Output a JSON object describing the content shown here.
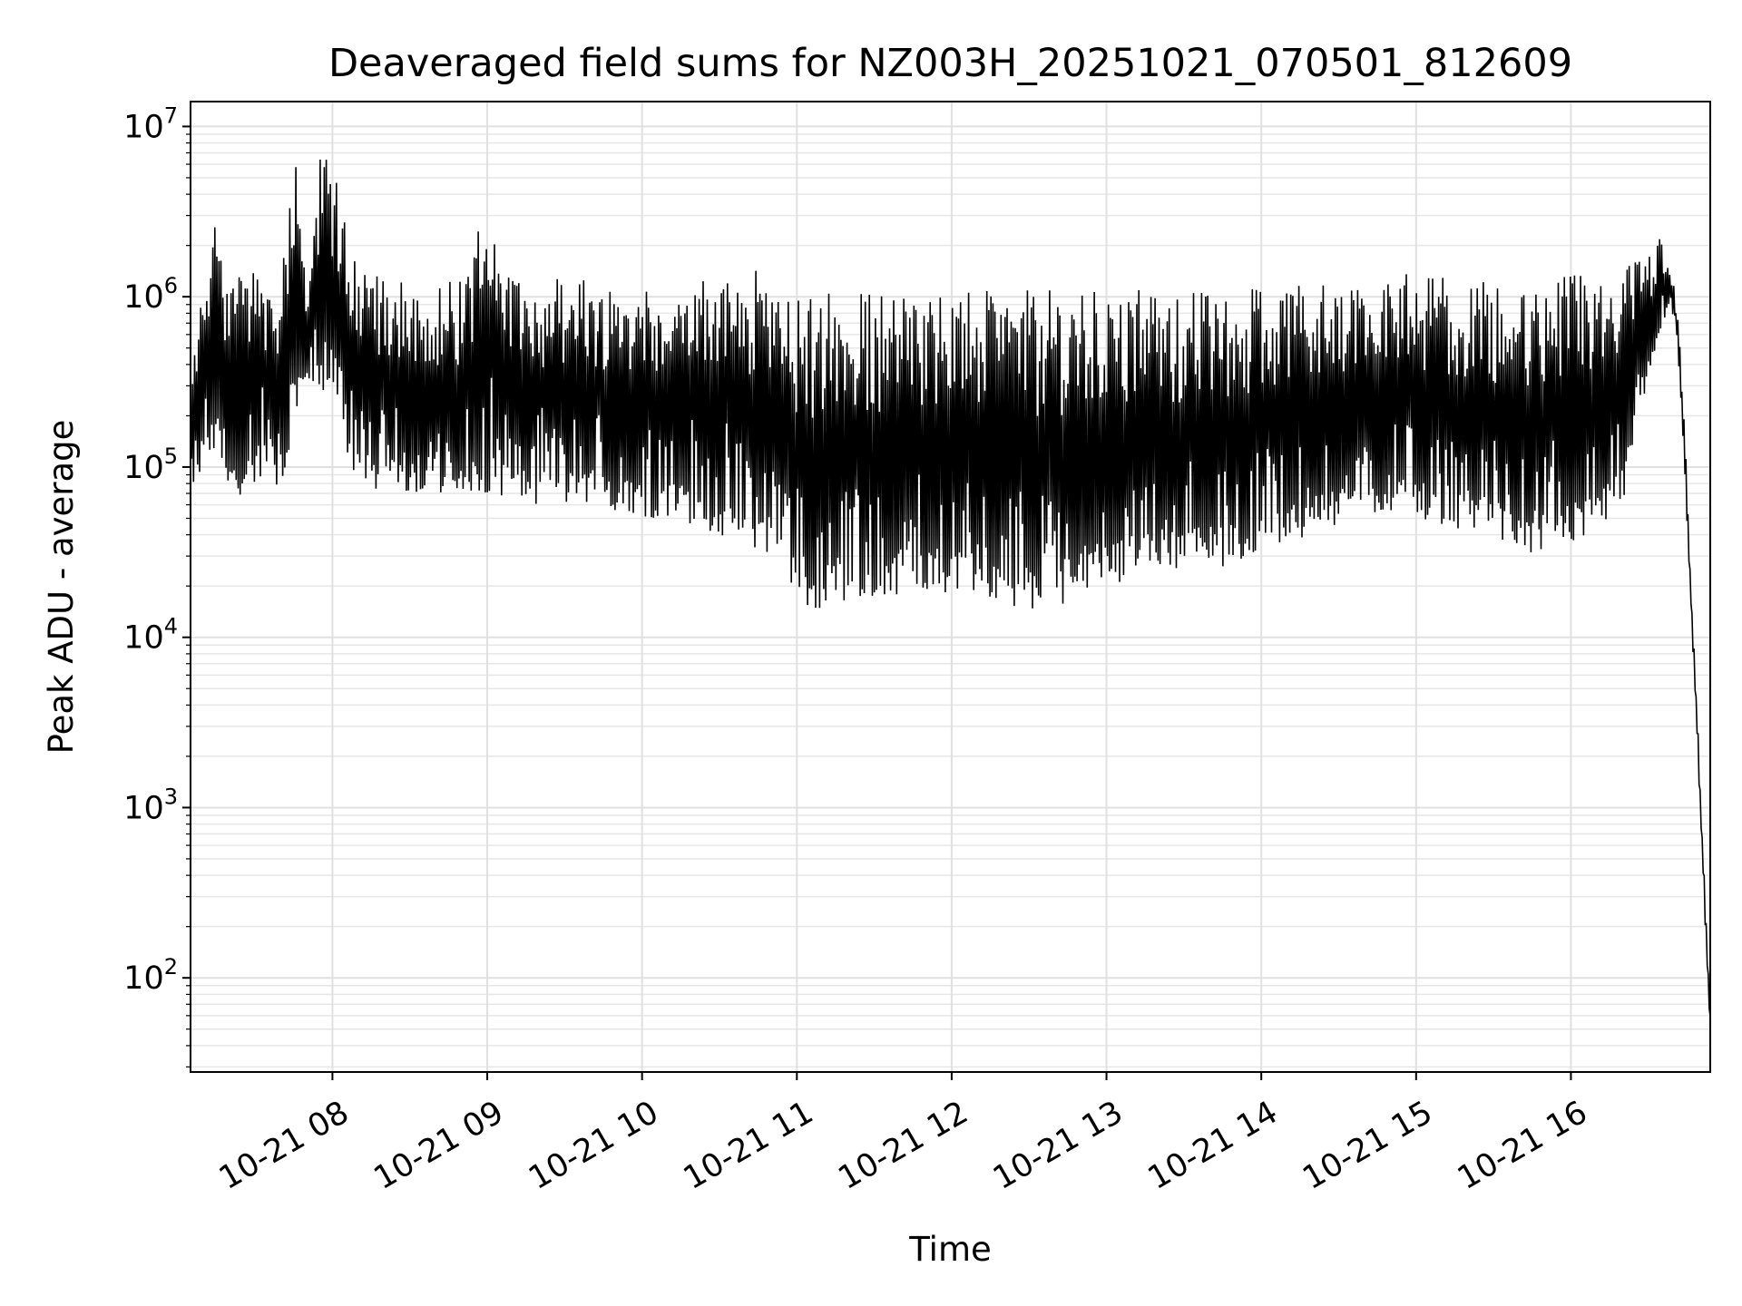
{
  "chart_data": {
    "type": "line",
    "title": "Deaveraged field sums for NZ003H_20251021_070501_812609",
    "xlabel": "Time",
    "ylabel": "Peak ADU - average",
    "yscale": "log",
    "ylim": [
      28,
      14000000
    ],
    "xlim": [
      "2025-10-21 07:05",
      "2025-10-21 16:54"
    ],
    "grid": true,
    "line_color": "#000000",
    "x_ticks": [
      {
        "value": "2025-10-21 08:00",
        "label": "10-21 08"
      },
      {
        "value": "2025-10-21 09:00",
        "label": "10-21 09"
      },
      {
        "value": "2025-10-21 10:00",
        "label": "10-21 10"
      },
      {
        "value": "2025-10-21 11:00",
        "label": "10-21 11"
      },
      {
        "value": "2025-10-21 12:00",
        "label": "10-21 12"
      },
      {
        "value": "2025-10-21 13:00",
        "label": "10-21 13"
      },
      {
        "value": "2025-10-21 14:00",
        "label": "10-21 14"
      },
      {
        "value": "2025-10-21 15:00",
        "label": "10-21 15"
      },
      {
        "value": "2025-10-21 16:00",
        "label": "10-21 16"
      }
    ],
    "y_ticks": [
      {
        "value": 100,
        "base": "10",
        "exp": "2"
      },
      {
        "value": 1000,
        "base": "10",
        "exp": "3"
      },
      {
        "value": 10000,
        "base": "10",
        "exp": "4"
      },
      {
        "value": 100000,
        "base": "10",
        "exp": "5"
      },
      {
        "value": 1000000,
        "base": "10",
        "exp": "6"
      },
      {
        "value": 10000000,
        "base": "10",
        "exp": "7"
      }
    ],
    "series": [
      {
        "x": [
          "2025-10-21 07:05",
          "2025-10-21 07:10",
          "2025-10-21 07:15",
          "2025-10-21 07:20",
          "2025-10-21 07:25",
          "2025-10-21 07:30",
          "2025-10-21 07:35",
          "2025-10-21 07:40",
          "2025-10-21 07:45",
          "2025-10-21 07:50",
          "2025-10-21 07:55",
          "2025-10-21 08:00",
          "2025-10-21 08:10",
          "2025-10-21 08:20",
          "2025-10-21 08:30",
          "2025-10-21 08:40",
          "2025-10-21 08:50",
          "2025-10-21 09:00",
          "2025-10-21 09:10",
          "2025-10-21 09:20",
          "2025-10-21 09:30",
          "2025-10-21 09:40",
          "2025-10-21 09:50",
          "2025-10-21 10:00",
          "2025-10-21 10:10",
          "2025-10-21 10:20",
          "2025-10-21 10:30",
          "2025-10-21 10:40",
          "2025-10-21 10:50",
          "2025-10-21 11:00",
          "2025-10-21 11:10",
          "2025-10-21 11:20",
          "2025-10-21 11:30",
          "2025-10-21 11:40",
          "2025-10-21 11:50",
          "2025-10-21 12:00",
          "2025-10-21 12:10",
          "2025-10-21 12:20",
          "2025-10-21 12:30",
          "2025-10-21 12:40",
          "2025-10-21 12:50",
          "2025-10-21 13:00",
          "2025-10-21 13:10",
          "2025-10-21 13:20",
          "2025-10-21 13:30",
          "2025-10-21 13:40",
          "2025-10-21 13:50",
          "2025-10-21 14:00",
          "2025-10-21 14:10",
          "2025-10-21 14:20",
          "2025-10-21 14:30",
          "2025-10-21 14:40",
          "2025-10-21 14:50",
          "2025-10-21 15:00",
          "2025-10-21 15:10",
          "2025-10-21 15:20",
          "2025-10-21 15:30",
          "2025-10-21 15:40",
          "2025-10-21 15:50",
          "2025-10-21 16:00",
          "2025-10-21 16:10",
          "2025-10-21 16:20",
          "2025-10-21 16:30",
          "2025-10-21 16:35",
          "2025-10-21 16:38",
          "2025-10-21 16:40",
          "2025-10-21 16:42",
          "2025-10-21 16:44",
          "2025-10-21 16:46",
          "2025-10-21 16:48",
          "2025-10-21 16:50",
          "2025-10-21 16:52",
          "2025-10-21 16:54"
        ],
        "upper": [
          300000,
          1500000,
          3300000,
          1300000,
          1400000,
          1500000,
          1400000,
          1300000,
          8000000,
          1300000,
          7000000,
          6000000,
          1800000,
          1500000,
          1400000,
          1300000,
          1400000,
          3700000,
          1400000,
          1300000,
          1300000,
          1300000,
          1300000,
          1300000,
          1400000,
          1400000,
          1300000,
          1200000,
          2000000,
          1100000,
          1100000,
          1100000,
          1100000,
          1100000,
          1100000,
          1100000,
          1100000,
          1100000,
          1100000,
          1100000,
          1100000,
          1100000,
          1100000,
          1100000,
          1100000,
          1100000,
          1200000,
          1200000,
          1200000,
          1200000,
          1200000,
          1300000,
          1400000,
          1400000,
          1400000,
          1400000,
          1300000,
          1400000,
          1300000,
          1400000,
          1400000,
          1500000,
          1700000,
          2300000,
          1700000,
          1200000,
          700000,
          200000,
          30000,
          8000,
          1500,
          300,
          60
        ],
        "lower": [
          60000,
          100000,
          120000,
          80000,
          60000,
          80000,
          100000,
          60000,
          180000,
          300000,
          250000,
          200000,
          80000,
          70000,
          70000,
          60000,
          60000,
          70000,
          65000,
          60000,
          60000,
          60000,
          55000,
          50000,
          50000,
          45000,
          40000,
          35000,
          30000,
          15000,
          14000,
          16000,
          17000,
          18000,
          19000,
          18000,
          17000,
          16000,
          14000,
          15000,
          17000,
          20000,
          22000,
          24000,
          24000,
          24000,
          25000,
          30000,
          35000,
          40000,
          45000,
          50000,
          55000,
          50000,
          45000,
          40000,
          35000,
          30000,
          30000,
          35000,
          40000,
          60000,
          300000,
          600000,
          900000,
          700000,
          300000,
          100000,
          20000,
          5000,
          1000,
          200,
          50
        ]
      }
    ]
  }
}
